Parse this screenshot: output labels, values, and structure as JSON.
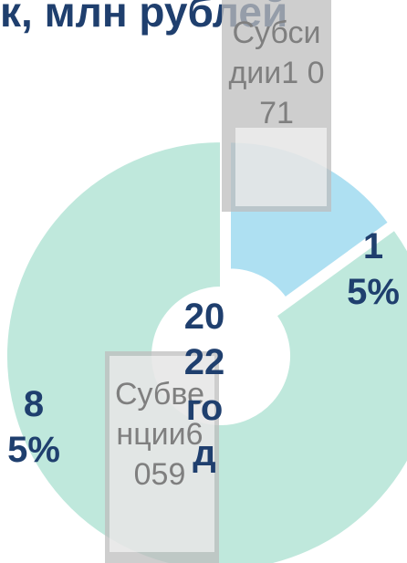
{
  "chart_data": {
    "type": "pie",
    "donut": true,
    "title": "к, млн рублей",
    "categories": [
      "Субсидии",
      "Субвенции"
    ],
    "values": [
      15,
      85
    ],
    "value_labels": [
      "15%",
      "85%"
    ],
    "amounts": [
      1071,
      6059
    ],
    "amount_labels": [
      "1 071",
      "6 059"
    ],
    "colors": [
      "#aee0f2",
      "#bfe8dc"
    ],
    "center_label": "2022 год"
  }
}
